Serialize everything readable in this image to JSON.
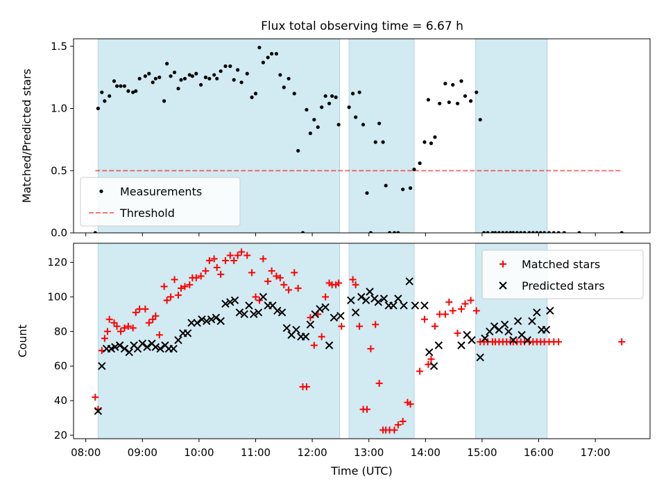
{
  "title": "Flux total observing time = 6.67 h",
  "colors": {
    "shade": "#add8e6",
    "threshold": "#ff0000",
    "matched": "#ff0000",
    "predicted": "#000000",
    "measurement": "#000000"
  },
  "chart_data": [
    {
      "type": "scatter",
      "ylabel": "Matched/Predicted stars",
      "xlabel": "",
      "xlim": [
        "07:47",
        "17:58"
      ],
      "ylim": [
        0,
        1.56
      ],
      "yticks": [
        0,
        0.5,
        1.0,
        1.5
      ],
      "ytick_labels": [
        "0.0",
        "0.5",
        "1.0",
        "1.5"
      ],
      "shaded_intervals": [
        [
          "08:13",
          "12:29"
        ],
        [
          "12:39",
          "13:48"
        ],
        [
          "14:53",
          "16:09"
        ]
      ],
      "legend_position": "lower-left",
      "threshold": {
        "name": "Threshold",
        "y": 0.5,
        "x_range": [
          "08:10",
          "17:29"
        ]
      },
      "series": [
        {
          "name": "Measurements",
          "marker": "dot",
          "x": [
            "08:10",
            "08:13",
            "08:17",
            "08:20",
            "08:25",
            "08:30",
            "08:33",
            "08:37",
            "08:41",
            "08:45",
            "08:50",
            "08:53",
            "08:57",
            "09:03",
            "09:07",
            "09:11",
            "09:14",
            "09:18",
            "09:23",
            "09:26",
            "09:30",
            "09:34",
            "09:38",
            "09:41",
            "09:45",
            "09:50",
            "09:53",
            "09:57",
            "10:02",
            "10:07",
            "10:11",
            "10:16",
            "10:19",
            "10:23",
            "10:28",
            "10:33",
            "10:37",
            "10:41",
            "10:45",
            "10:51",
            "10:56",
            "11:00",
            "11:04",
            "11:08",
            "11:13",
            "11:17",
            "11:22",
            "11:26",
            "11:30",
            "11:35",
            "11:41",
            "11:45",
            "11:50",
            "11:54",
            "11:58",
            "12:02",
            "12:06",
            "12:10",
            "12:14",
            "12:18",
            "12:21",
            "12:25",
            "12:28",
            "12:39",
            "12:43",
            "12:46",
            "12:50",
            "12:54",
            "12:58",
            "13:02",
            "13:07",
            "13:11",
            "13:15",
            "13:18",
            "13:22",
            "13:27",
            "13:31",
            "13:36",
            "13:44",
            "13:48",
            "13:54",
            "13:59",
            "14:03",
            "14:06",
            "14:10",
            "14:15",
            "14:21",
            "14:25",
            "14:29",
            "14:34",
            "14:38",
            "14:42",
            "14:48",
            "14:54",
            "14:58",
            "15:02",
            "15:06",
            "15:11",
            "15:14",
            "15:18",
            "15:22",
            "15:26",
            "15:30",
            "15:33",
            "15:37",
            "15:41",
            "15:45",
            "15:50",
            "15:54",
            "15:58",
            "16:02",
            "16:06",
            "16:11",
            "16:16",
            "16:21",
            "16:27",
            "16:43",
            "17:28"
          ],
          "y": [
            0.0,
            1.0,
            1.13,
            1.06,
            1.1,
            1.22,
            1.18,
            1.18,
            1.18,
            1.14,
            1.13,
            1.14,
            1.24,
            1.26,
            1.28,
            1.21,
            1.24,
            1.25,
            1.06,
            1.36,
            1.26,
            1.29,
            1.16,
            1.23,
            1.24,
            1.27,
            1.26,
            1.28,
            1.19,
            1.25,
            1.24,
            1.27,
            1.24,
            1.3,
            1.34,
            1.34,
            1.23,
            1.31,
            1.21,
            1.28,
            1.09,
            1.12,
            1.49,
            1.37,
            1.41,
            1.44,
            1.44,
            1.27,
            1.17,
            1.24,
            1.12,
            0.66,
            0.0,
            0.99,
            0.8,
            0.91,
            0.85,
            1.01,
            1.1,
            1.04,
            1.1,
            1.09,
            0.87,
            1.01,
            1.12,
            0.93,
            1.13,
            0.87,
            0.32,
            0.0,
            0.73,
            0.88,
            0.73,
            0.38,
            0.0,
            0.0,
            0.0,
            0.35,
            0.36,
            0.51,
            0.56,
            0.73,
            1.07,
            0.72,
            0.77,
            1.04,
            1.2,
            1.05,
            1.19,
            1.04,
            1.22,
            1.1,
            1.06,
            1.13,
            0.91,
            0.0,
            0.0,
            0.0,
            0.0,
            0.0,
            0.0,
            0.0,
            0.0,
            0.0,
            0.0,
            0.0,
            0.0,
            0.0,
            0.0,
            0.0,
            0.0,
            0.0,
            0.0,
            0.0,
            0.0,
            0.0,
            0.0,
            0.0
          ]
        }
      ]
    },
    {
      "type": "scatter",
      "xlabel": "Time (UTC)",
      "ylabel": "Count",
      "xlim": [
        "07:47",
        "17:58"
      ],
      "ylim": [
        18,
        131
      ],
      "yticks": [
        20,
        40,
        60,
        80,
        100,
        120
      ],
      "ytick_labels": [
        "20",
        "40",
        "60",
        "80",
        "100",
        "120"
      ],
      "xtick_labels": [
        "08:00",
        "09:00",
        "10:00",
        "11:00",
        "12:00",
        "13:00",
        "14:00",
        "15:00",
        "16:00",
        "17:00"
      ],
      "shaded_intervals": [
        [
          "08:13",
          "12:29"
        ],
        [
          "12:39",
          "13:48"
        ],
        [
          "14:53",
          "16:09"
        ]
      ],
      "legend_position": "upper-right",
      "series": [
        {
          "name": "Matched stars",
          "marker": "plus",
          "x": [
            "08:10",
            "08:13",
            "08:17",
            "08:20",
            "08:23",
            "08:25",
            "08:30",
            "08:33",
            "08:37",
            "08:41",
            "08:45",
            "08:50",
            "08:53",
            "08:57",
            "09:03",
            "09:07",
            "09:11",
            "09:14",
            "09:18",
            "09:23",
            "09:26",
            "09:30",
            "09:34",
            "09:38",
            "09:41",
            "09:45",
            "09:50",
            "09:53",
            "09:57",
            "10:02",
            "10:07",
            "10:11",
            "10:16",
            "10:19",
            "10:23",
            "10:28",
            "10:33",
            "10:37",
            "10:41",
            "10:45",
            "10:51",
            "10:56",
            "11:00",
            "11:04",
            "11:08",
            "11:13",
            "11:17",
            "11:22",
            "11:26",
            "11:30",
            "11:35",
            "11:41",
            "11:45",
            "11:50",
            "11:54",
            "11:58",
            "12:02",
            "12:06",
            "12:10",
            "12:14",
            "12:18",
            "12:21",
            "12:25",
            "12:28",
            "12:31",
            "12:43",
            "12:46",
            "12:50",
            "12:54",
            "12:58",
            "13:02",
            "13:07",
            "13:11",
            "13:15",
            "13:18",
            "13:22",
            "13:27",
            "13:31",
            "13:36",
            "13:41",
            "13:44",
            "13:54",
            "13:59",
            "14:03",
            "14:06",
            "14:10",
            "14:15",
            "14:21",
            "14:25",
            "14:29",
            "14:34",
            "14:38",
            "14:42",
            "14:48",
            "14:54",
            "14:58",
            "15:02",
            "15:06",
            "15:11",
            "15:14",
            "15:18",
            "15:22",
            "15:26",
            "15:30",
            "15:33",
            "15:37",
            "15:41",
            "15:45",
            "15:50",
            "15:54",
            "15:58",
            "16:02",
            "16:06",
            "16:11",
            "16:16",
            "16:21",
            "17:28"
          ],
          "y": [
            42,
            35,
            69,
            76,
            80,
            87,
            85,
            83,
            80,
            82,
            83,
            82,
            91,
            93,
            93,
            85,
            87,
            89,
            78,
            106,
            98,
            100,
            110,
            101,
            105,
            106,
            107,
            111,
            111,
            112,
            115,
            121,
            122,
            117,
            113,
            121,
            124,
            121,
            124,
            126,
            124,
            114,
            100,
            98,
            122,
            109,
            115,
            112,
            111,
            107,
            104,
            114,
            105,
            48,
            48,
            88,
            72,
            90,
            77,
            100,
            108,
            107,
            107,
            108,
            83,
            110,
            107,
            83,
            35,
            35,
            70,
            84,
            50,
            23,
            23,
            23,
            23,
            26,
            28,
            39,
            38,
            57,
            87,
            61,
            64,
            83,
            90,
            90,
            97,
            92,
            79,
            93,
            96,
            98,
            92,
            74,
            74,
            74,
            74,
            74,
            74,
            74,
            74,
            74,
            74,
            74,
            74,
            74,
            74,
            74,
            74,
            74,
            74,
            74,
            74,
            74,
            74
          ]
        },
        {
          "name": "Predicted stars",
          "marker": "x",
          "x": [
            "08:13",
            "08:17",
            "08:22",
            "08:27",
            "08:31",
            "08:36",
            "08:41",
            "08:46",
            "08:51",
            "08:55",
            "09:00",
            "09:05",
            "09:10",
            "09:14",
            "09:19",
            "09:24",
            "09:28",
            "09:33",
            "09:38",
            "09:43",
            "09:48",
            "09:52",
            "09:58",
            "10:03",
            "10:08",
            "10:13",
            "10:18",
            "10:23",
            "10:28",
            "10:33",
            "10:38",
            "10:43",
            "10:48",
            "10:53",
            "10:58",
            "11:03",
            "11:08",
            "11:13",
            "11:18",
            "11:23",
            "11:28",
            "11:33",
            "11:38",
            "11:43",
            "11:48",
            "11:53",
            "11:58",
            "12:03",
            "12:08",
            "12:14",
            "12:18",
            "12:23",
            "12:30",
            "12:41",
            "12:46",
            "12:52",
            "12:57",
            "13:01",
            "13:06",
            "13:10",
            "13:16",
            "13:21",
            "13:26",
            "13:31",
            "13:37",
            "13:43",
            "13:49",
            "13:59",
            "14:04",
            "14:09",
            "14:14",
            "14:38",
            "14:44",
            "14:49",
            "14:58",
            "15:03",
            "15:08",
            "15:13",
            "15:18",
            "15:24",
            "15:28",
            "15:33",
            "15:38",
            "15:42",
            "15:48",
            "15:53",
            "15:58",
            "16:03",
            "16:08",
            "16:12"
          ],
          "y": [
            34,
            60,
            70,
            70,
            71,
            72,
            70,
            68,
            72,
            70,
            73,
            71,
            73,
            71,
            70,
            72,
            70,
            70,
            75,
            79,
            79,
            85,
            85,
            87,
            86,
            87,
            88,
            86,
            96,
            97,
            98,
            91,
            90,
            95,
            90,
            91,
            100,
            95,
            95,
            92,
            91,
            82,
            78,
            81,
            77,
            77,
            84,
            90,
            93,
            94,
            72,
            88,
            89,
            98,
            91,
            100,
            98,
            103,
            99,
            97,
            99,
            95,
            95,
            99,
            95,
            109,
            95,
            95,
            68,
            60,
            72,
            72,
            78,
            75,
            65,
            76,
            80,
            83,
            81,
            84,
            80,
            75,
            86,
            78,
            75,
            86,
            91,
            81,
            81,
            92
          ]
        }
      ]
    }
  ]
}
